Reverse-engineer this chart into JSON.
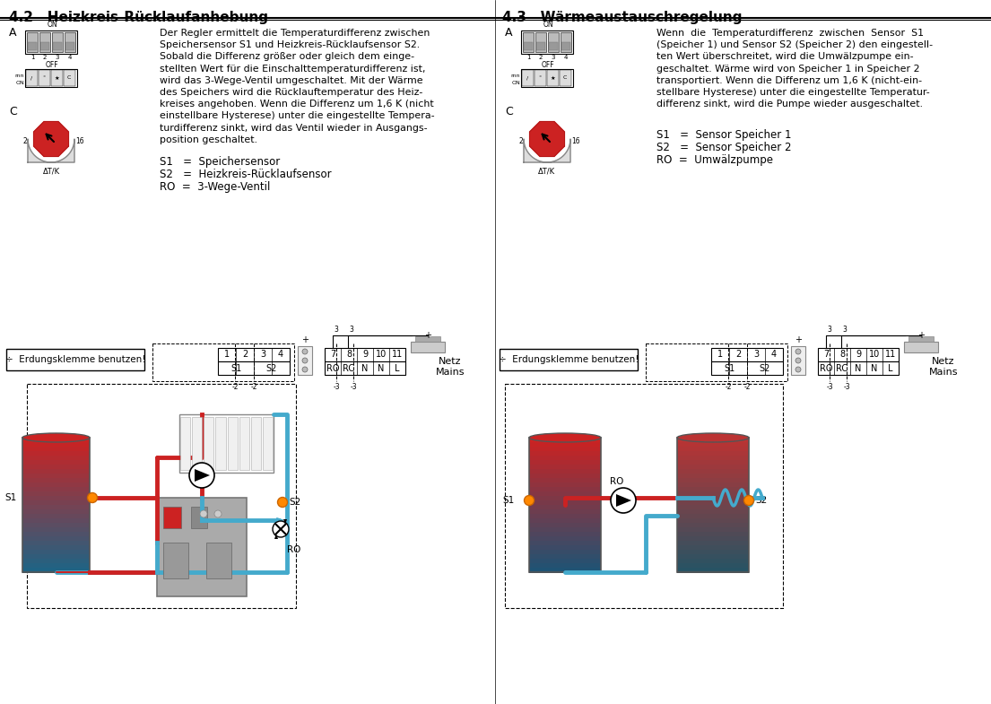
{
  "title_left": "4.2   Heizkreis-Rücklaufanhebung",
  "title_right": "4.3   Wärmeaustauschregelung",
  "text_left_lines": [
    "Der Regler ermittelt die Temperaturdifferenz zwischen",
    "Speichersensor S1 und Heizkreis-Rücklaufsensor S2.",
    "Sobald die Differenz größer oder gleich dem einge-",
    "stellten Wert für die Einschalttemperaturdifferenz ist,",
    "wird das 3-Wege-Ventil umgeschaltet. Mit der Wärme",
    "des Speichers wird die Rücklauftemperatur des Heiz-",
    "kreises angehoben. Wenn die Differenz um 1,6 K (nicht",
    "einstellbare Hysterese) unter die eingestellte Tempera-",
    "turdifferenz sinkt, wird das Ventil wieder in Ausgangs-",
    "position geschaltet."
  ],
  "text_right_lines": [
    "Wenn  die  Temperaturdifferenz  zwischen  Sensor  S1",
    "(Speicher 1) und Sensor S2 (Speicher 2) den eingestell-",
    "ten Wert überschreitet, wird die Umwälzpumpe ein-",
    "geschaltet. Wärme wird von Speicher 1 in Speicher 2",
    "transportiert. Wenn die Differenz um 1,6 K (nicht-ein-",
    "stellbare Hysterese) unter die eingestellte Temperatur-",
    "differenz sinkt, wird die Pumpe wieder ausgeschaltet."
  ],
  "legend_left": [
    "S1   =  Speichersensor",
    "S2   =  Heizkreis-Rücklaufsensor",
    "RO  =  3-Wege-Ventil"
  ],
  "legend_right": [
    "S1   =  Sensor Speicher 1",
    "S2   =  Sensor Speicher 2",
    "RO  =  Umwälzpumpe"
  ],
  "erdung_text": "÷  Erdungsklemme benutzen!",
  "netz_text": "Netz\nMains",
  "bg_color": "#ffffff",
  "red_color": "#cc2222",
  "blue_color": "#44aacc",
  "orange_color": "#ff8800"
}
